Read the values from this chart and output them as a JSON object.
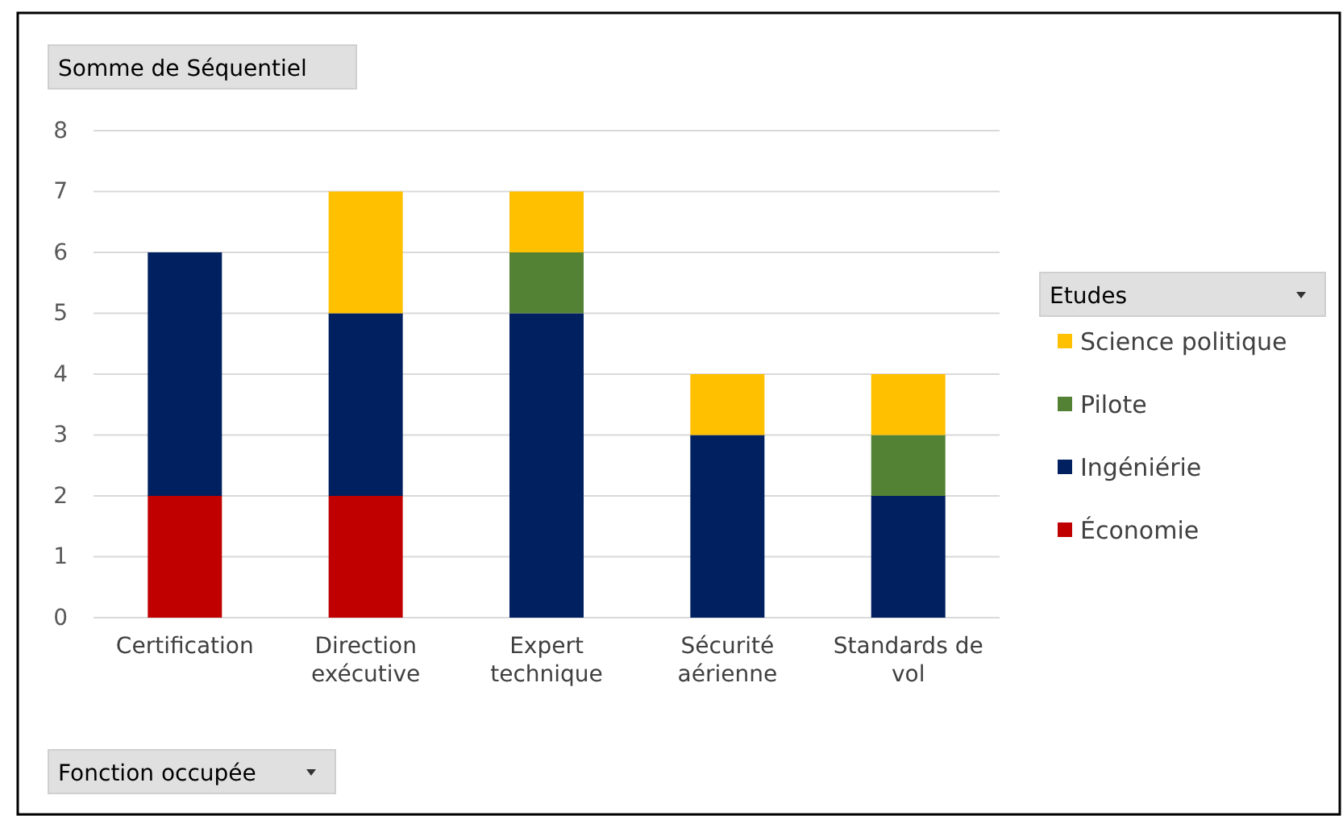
{
  "chart_data": {
    "type": "bar",
    "title": "Somme de Séquentiel",
    "xlabel": "Fonction occupée",
    "legend_title": "Etudes",
    "categories": [
      "Certification",
      "Direction exécutive",
      "Expert technique",
      "Sécurité aérienne",
      "Standards de vol"
    ],
    "series": [
      {
        "name": "Économie",
        "color": "#c00000",
        "values": [
          2,
          2,
          0,
          0,
          0
        ]
      },
      {
        "name": "Ingéniérie",
        "color": "#002060",
        "values": [
          4,
          3,
          5,
          3,
          2
        ]
      },
      {
        "name": "Pilote",
        "color": "#548235",
        "values": [
          0,
          0,
          1,
          0,
          1
        ]
      },
      {
        "name": "Science politique",
        "color": "#ffc000",
        "values": [
          0,
          2,
          1,
          1,
          1
        ]
      }
    ],
    "stacked": true,
    "ylim": [
      0,
      8
    ],
    "yticks": [
      0,
      1,
      2,
      3,
      4,
      5,
      6,
      7,
      8
    ],
    "grid": "y",
    "legend": "right"
  }
}
